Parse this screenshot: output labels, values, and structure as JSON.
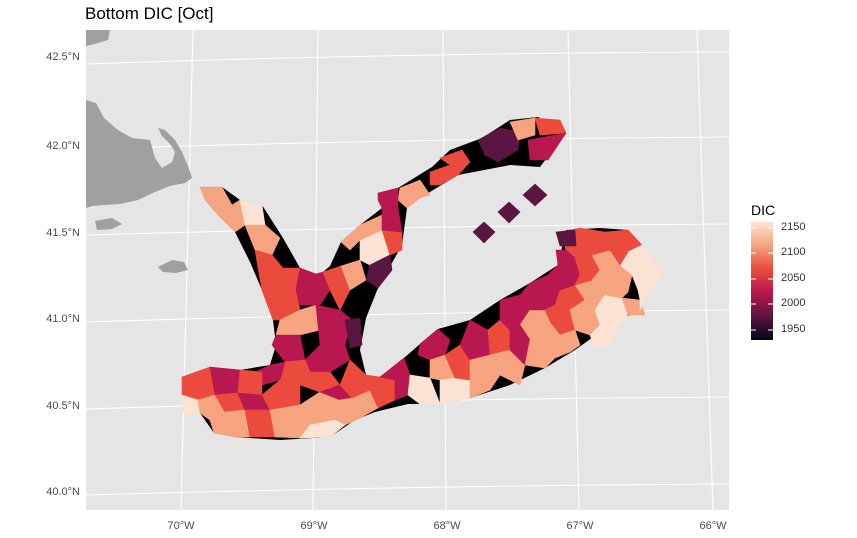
{
  "title": "Bottom DIC [Oct]",
  "map": {
    "land_color": "#a0a0a0",
    "panel_color": "#e5e5e5",
    "grid_color": "#ffffff",
    "lat_ticks": [
      "42.5°N",
      "42.0°N",
      "41.5°N",
      "41.0°N",
      "40.5°N",
      "40.0°N"
    ],
    "lon_ticks": [
      "70°W",
      "69°W",
      "68°W",
      "67°W",
      "66°W"
    ]
  },
  "legend": {
    "title": "DIC",
    "breaks": [
      "2150",
      "2100",
      "2050",
      "2000",
      "1950"
    ],
    "colors": [
      "#fbe3d3",
      "#f6a37f",
      "#ea4b3d",
      "#b8174f",
      "#5a1540",
      "#03051a"
    ]
  }
}
